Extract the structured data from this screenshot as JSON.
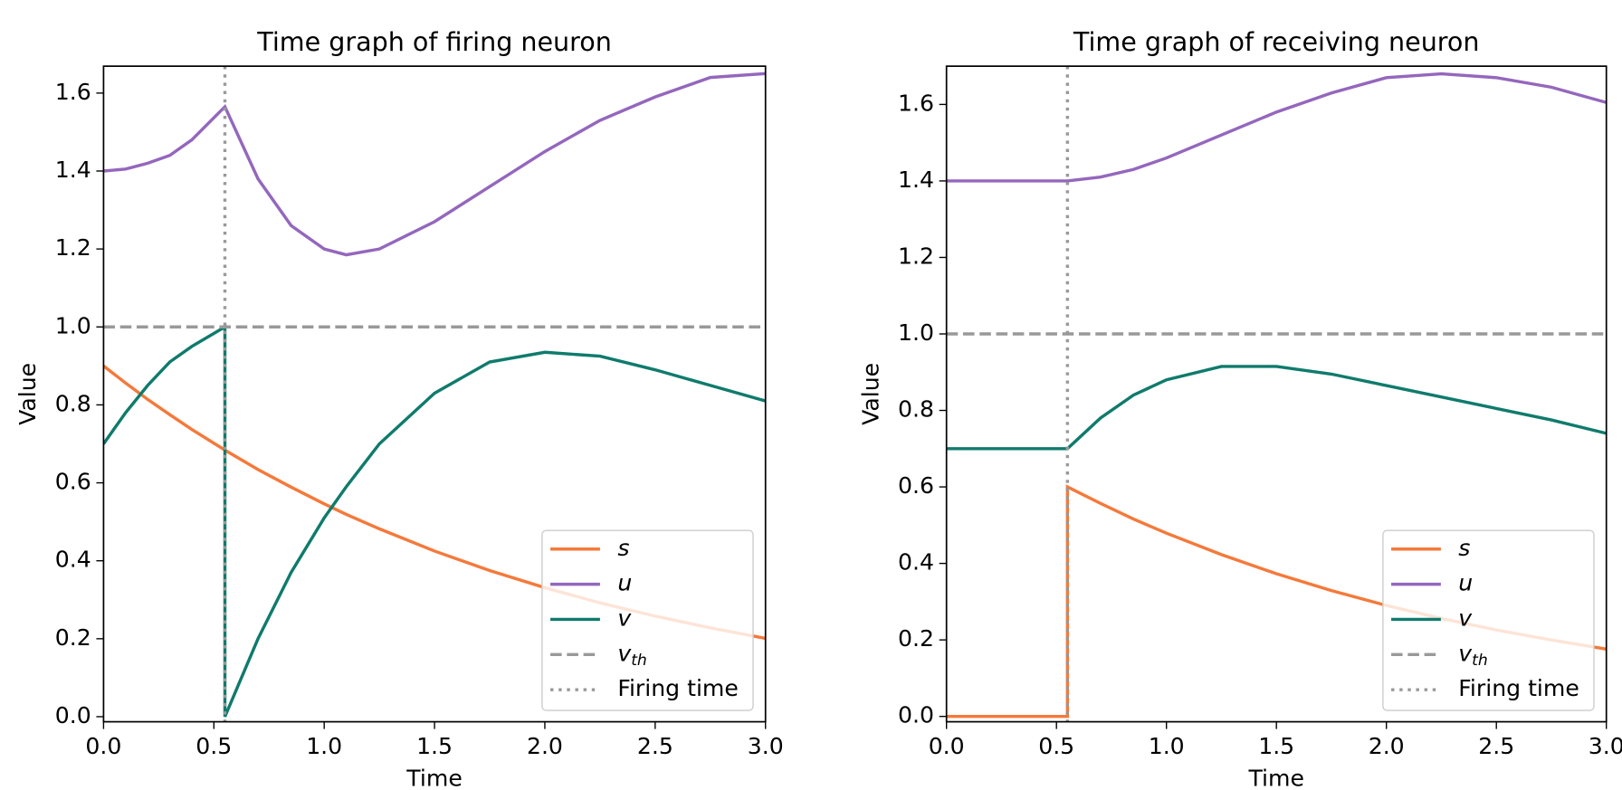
{
  "chart_data": [
    {
      "type": "line",
      "title": "Time graph of firing neuron",
      "x_label": "Time",
      "y_label": "Value",
      "x": [
        0,
        0.1,
        0.2,
        0.3,
        0.4,
        0.55,
        0.55,
        0.7,
        0.85,
        1.0,
        1.1,
        1.25,
        1.5,
        1.75,
        2.0,
        2.25,
        2.5,
        2.75,
        3.0
      ],
      "series": [
        {
          "name": "s",
          "color": "#f5793a",
          "values": [
            0.9,
            0.856,
            0.814,
            0.775,
            0.737,
            0.684,
            0.684,
            0.634,
            0.589,
            0.546,
            0.519,
            0.482,
            0.425,
            0.375,
            0.331,
            0.292,
            0.258,
            0.228,
            0.201
          ]
        },
        {
          "name": "u",
          "color": "#9467bd",
          "values": [
            1.4,
            1.405,
            1.42,
            1.44,
            1.48,
            1.565,
            1.565,
            1.38,
            1.26,
            1.2,
            1.185,
            1.2,
            1.27,
            1.36,
            1.45,
            1.53,
            1.59,
            1.64,
            1.65
          ]
        },
        {
          "name": "v",
          "color": "#0f7b6c",
          "values": [
            0.7,
            0.78,
            0.85,
            0.91,
            0.95,
            1.0,
            0.0,
            0.2,
            0.37,
            0.51,
            0.59,
            0.7,
            0.83,
            0.91,
            0.935,
            0.925,
            0.89,
            0.85,
            0.81
          ]
        }
      ],
      "hline": {
        "name": "v",
        "subscript": "th",
        "value": 1.0,
        "color": "#999999"
      },
      "vline": {
        "name": "Firing time",
        "value": 0.55,
        "color": "#999999"
      },
      "xlim": [
        0,
        3.0
      ],
      "ylim": [
        -0.013,
        1.669
      ],
      "xticks": [
        {
          "value": 0,
          "label": "0.0"
        },
        0.5,
        {
          "value": 1,
          "label": "1.0"
        },
        1.5,
        {
          "value": 2,
          "label": "2.0"
        },
        2.5,
        {
          "value": 3,
          "label": "3.0"
        }
      ],
      "yticks": [
        {
          "value": 0,
          "label": "0.0"
        },
        0.2,
        0.4,
        0.6,
        0.8,
        {
          "value": 1,
          "label": "1.0"
        },
        1.2,
        1.4,
        1.6
      ],
      "legend": "lower right"
    },
    {
      "type": "line",
      "title": "Time graph of receiving neuron",
      "x_label": "Time",
      "y_label": "Value",
      "x": [
        0,
        0.55,
        0.55,
        0.7,
        0.85,
        1.0,
        1.25,
        1.5,
        1.75,
        2.0,
        2.25,
        2.5,
        2.75,
        3.0
      ],
      "series": [
        {
          "name": "s",
          "color": "#f5793a",
          "values": [
            0,
            0,
            0.6,
            0.557,
            0.516,
            0.479,
            0.423,
            0.373,
            0.329,
            0.29,
            0.256,
            0.226,
            0.2,
            0.176
          ]
        },
        {
          "name": "u",
          "color": "#9467bd",
          "values": [
            1.4,
            1.4,
            1.4,
            1.41,
            1.43,
            1.46,
            1.52,
            1.58,
            1.63,
            1.67,
            1.68,
            1.67,
            1.645,
            1.605
          ]
        },
        {
          "name": "v",
          "color": "#0f7b6c",
          "values": [
            0.7,
            0.7,
            0.7,
            0.78,
            0.84,
            0.88,
            0.915,
            0.915,
            0.895,
            0.865,
            0.835,
            0.805,
            0.775,
            0.74
          ]
        }
      ],
      "hline": {
        "name": "v",
        "subscript": "th",
        "value": 1.0,
        "color": "#999999"
      },
      "vline": {
        "name": "Firing time",
        "value": 0.55,
        "color": "#999999"
      },
      "xlim": [
        0,
        3.0
      ],
      "ylim": [
        -0.014,
        1.7
      ],
      "xticks": [
        {
          "value": 0,
          "label": "0.0"
        },
        0.5,
        {
          "value": 1,
          "label": "1.0"
        },
        1.5,
        {
          "value": 2,
          "label": "2.0"
        },
        2.5,
        {
          "value": 3,
          "label": "3.0"
        }
      ],
      "yticks": [
        {
          "value": 0,
          "label": "0.0"
        },
        0.2,
        0.4,
        0.6,
        0.8,
        {
          "value": 1,
          "label": "1.0"
        },
        1.2,
        1.4,
        1.6
      ],
      "legend": "lower right"
    }
  ]
}
